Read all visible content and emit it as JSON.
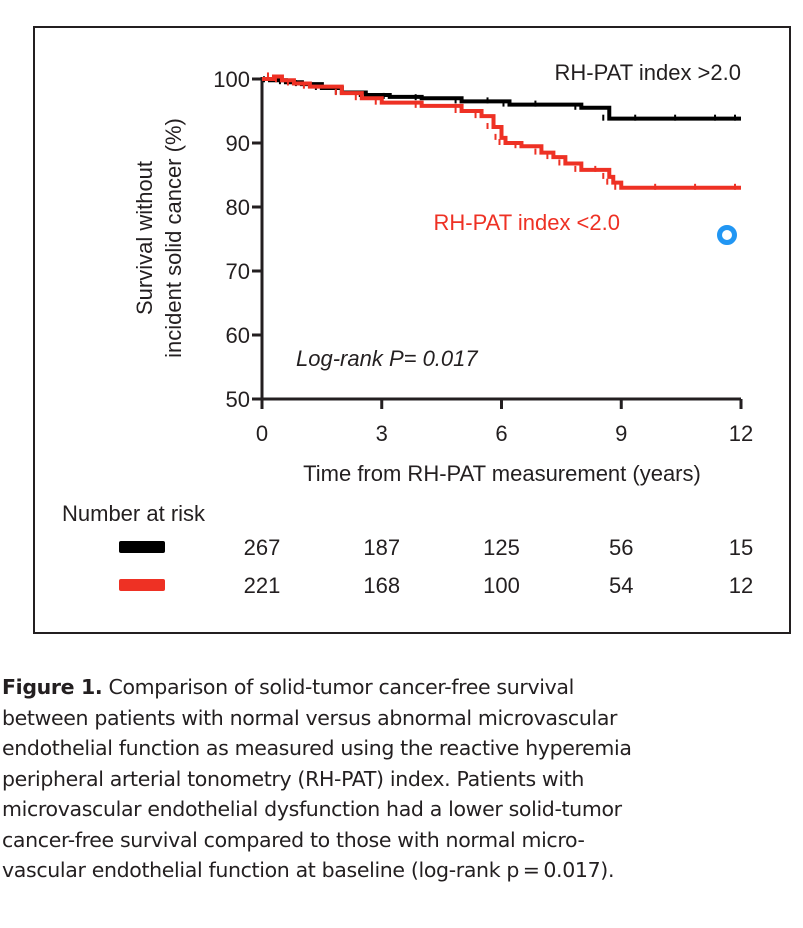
{
  "chart_data": {
    "type": "line",
    "subtype": "kaplan-meier-step",
    "title": "",
    "xlabel": "Time from RH-PAT measurement (years)",
    "ylabel_lines": [
      "Survival without",
      "incident solid cancer (%)"
    ],
    "xlim": [
      0,
      12
    ],
    "ylim": [
      50,
      100
    ],
    "x_ticks": [
      0,
      3,
      6,
      9,
      12
    ],
    "y_ticks": [
      50,
      60,
      70,
      80,
      90,
      100
    ],
    "grid": false,
    "series": [
      {
        "name": "RH-PAT index >2.0",
        "color": "#000000",
        "label_color": "#231f20",
        "x": [
          0,
          0.2,
          0.6,
          1.0,
          1.5,
          2.0,
          2.6,
          3.2,
          4.0,
          5.0,
          5.8,
          6.2,
          7.0,
          8.0,
          8.7,
          9.5,
          10.5,
          11.5,
          12
        ],
        "y": [
          100,
          99.8,
          99.5,
          99.2,
          98.6,
          97.9,
          97.5,
          97.2,
          97.0,
          96.5,
          96.5,
          96.0,
          96.0,
          95.5,
          93.8,
          93.8,
          93.8,
          93.8,
          93.8
        ]
      },
      {
        "name": "RH-PAT index <2.0",
        "color": "#ee3124",
        "label_color": "#ee3124",
        "x": [
          0,
          0.3,
          0.5,
          0.8,
          1.2,
          2.0,
          2.5,
          3.0,
          4.0,
          5.0,
          5.5,
          5.8,
          6.0,
          6.1,
          6.5,
          7.0,
          7.3,
          7.6,
          8.0,
          8.5,
          8.7,
          8.8,
          9.0,
          10.0,
          11.0,
          12
        ],
        "y": [
          100,
          100.4,
          99.8,
          99.3,
          98.8,
          97.8,
          97.0,
          96.3,
          95.8,
          95.0,
          94.2,
          92.5,
          90.8,
          90.0,
          89.5,
          88.5,
          87.8,
          86.8,
          85.8,
          85.8,
          84.7,
          83.8,
          83.0,
          83.0,
          83.0,
          83.0
        ]
      }
    ],
    "annotations": {
      "top_label": "RH-PAT index >2.0",
      "bottom_label": "RH-PAT index <2.0",
      "logrank": "Log-rank P= 0.017"
    },
    "number_at_risk": {
      "title": "Number at risk",
      "rows": [
        {
          "series": "RH-PAT index >2.0",
          "color": "#000000",
          "values": [
            "267",
            "187",
            "125",
            "56",
            "15"
          ]
        },
        {
          "series": "RH-PAT index <2.0",
          "color": "#ee3124",
          "values": [
            "221",
            "168",
            "100",
            "54",
            "12"
          ]
        }
      ]
    }
  },
  "overlay": {
    "marker_color": "#2196f3",
    "icon": "circle-outline-icon"
  },
  "caption": {
    "label": "Figure 1.",
    "text": "Comparison of solid-tumor cancer-free survival between patients with normal versus abnormal microvascular endothelial function as measured using the reactive hyperemia peripheral arterial tonometry (RH-PAT) index. Patients with microvascular endothelial dysfunction had a lower solid-tumor cancer-free survival compared to those with normal micro-vascular endothelial function at baseline (log-rank p = 0.017).",
    "lines": [
      "Comparison of solid-tumor cancer-free survival",
      "between patients with normal versus abnormal microvascular",
      "endothelial function as measured using the reactive hyperemia",
      "peripheral arterial tonometry (RH-PAT) index. Patients with",
      "microvascular endothelial dysfunction had a lower solid-tumor",
      "cancer-free survival compared to those with normal micro-",
      "vascular endothelial function at baseline (log-rank p = 0.017)."
    ]
  }
}
